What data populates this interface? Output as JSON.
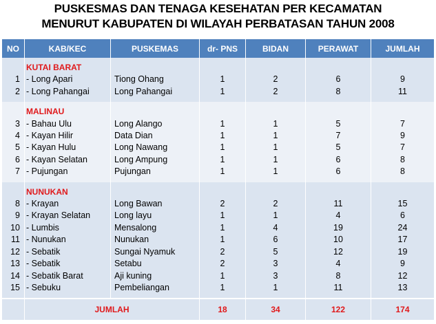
{
  "title_line1": "PUSKESMAS DAN TENAGA KESEHATAN PER KECAMATAN",
  "title_line2": "MENURUT KABUPATEN DI WILAYAH PERBATASAN TAHUN 2008",
  "headers": [
    "NO",
    "KAB/KEC",
    "PUSKEMAS",
    "dr- PNS",
    "BIDAN",
    "PERAWAT",
    "JUMLAH"
  ],
  "groups": [
    {
      "name": "KUTAI BARAT",
      "rows": [
        {
          "no": "1",
          "kec": "- Long Apari",
          "puskesmas": "Tiong Ohang",
          "dr": "1",
          "bidan": "2",
          "perawat": "6",
          "jumlah": "9"
        },
        {
          "no": "2",
          "kec": "- Long Pahangai",
          "puskesmas": "Long Pahangai",
          "dr": "1",
          "bidan": "2",
          "perawat": "8",
          "jumlah": "11"
        }
      ]
    },
    {
      "name": "MALINAU",
      "rows": [
        {
          "no": "3",
          "kec": "- Bahau Ulu",
          "puskesmas": "Long Alango",
          "dr": "1",
          "bidan": "1",
          "perawat": "5",
          "jumlah": "7"
        },
        {
          "no": "4",
          "kec": "- Kayan Hilir",
          "puskesmas": "Data Dian",
          "dr": "1",
          "bidan": "1",
          "perawat": "7",
          "jumlah": "9"
        },
        {
          "no": "5",
          "kec": "- Kayan Hulu",
          "puskesmas": "Long Nawang",
          "dr": "1",
          "bidan": "1",
          "perawat": "5",
          "jumlah": "7"
        },
        {
          "no": "6",
          "kec": "- Kayan Selatan",
          "puskesmas": "Long Ampung",
          "dr": "1",
          "bidan": "1",
          "perawat": "6",
          "jumlah": "8"
        },
        {
          "no": "7",
          "kec": "- Pujungan",
          "puskesmas": "Pujungan",
          "dr": "1",
          "bidan": "1",
          "perawat": "6",
          "jumlah": "8"
        }
      ]
    },
    {
      "name": "NUNUKAN",
      "rows": [
        {
          "no": "8",
          "kec": "- Krayan",
          "puskesmas": "Long Bawan",
          "dr": "2",
          "bidan": "2",
          "perawat": "11",
          "jumlah": "15"
        },
        {
          "no": "9",
          "kec": "- Krayan Selatan",
          "puskesmas": "Long layu",
          "dr": "1",
          "bidan": "1",
          "perawat": "4",
          "jumlah": "6"
        },
        {
          "no": "10",
          "kec": "- Lumbis",
          "puskesmas": "Mensalong",
          "dr": "1",
          "bidan": "4",
          "perawat": "19",
          "jumlah": "24"
        },
        {
          "no": "11",
          "kec": "- Nunukan",
          "puskesmas": "Nunukan",
          "dr": "1",
          "bidan": "6",
          "perawat": "10",
          "jumlah": "17"
        },
        {
          "no": "12",
          "kec": "- Sebatik",
          "puskesmas": "Sungai Nyamuk",
          "dr": "2",
          "bidan": "5",
          "perawat": "12",
          "jumlah": "19"
        },
        {
          "no": "13",
          "kec": "- Sebatik",
          "puskesmas": "Setabu",
          "dr": "2",
          "bidan": "3",
          "perawat": "4",
          "jumlah": "9"
        },
        {
          "no": "14",
          "kec": "- Sebatik Barat",
          "puskesmas": "Aji kuning",
          "dr": "1",
          "bidan": "3",
          "perawat": "8",
          "jumlah": "12"
        },
        {
          "no": "15",
          "kec": "- Sebuku",
          "puskesmas": "Pembeliangan",
          "dr": "1",
          "bidan": "1",
          "perawat": "11",
          "jumlah": "13"
        }
      ]
    }
  ],
  "total": {
    "label": "JUMLAH",
    "dr": "18",
    "bidan": "34",
    "perawat": "122",
    "jumlah": "174"
  },
  "colors": {
    "header_bg": "#4f81bd",
    "band_dark": "#dbe4f0",
    "band_light": "#edf1f7",
    "accent_red": "#e0191b"
  }
}
